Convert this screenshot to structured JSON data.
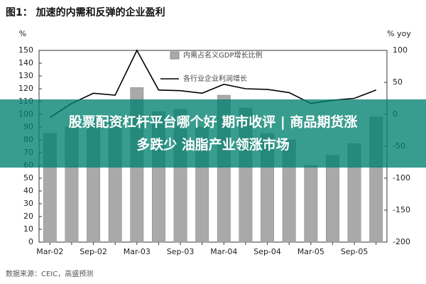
{
  "chart_data": {
    "type": "bar",
    "title": "图1： 加速的内需和反弹的企业盈利",
    "y_label": "%",
    "y2_label": "% yoy",
    "categories": [
      "Mar-02",
      null,
      "Sep-02",
      null,
      "Mar-03",
      null,
      "Sep-03",
      null,
      "Mar-04",
      null,
      "Sep-04",
      null,
      "Mar-05",
      null,
      "Sep-05",
      null
    ],
    "series": [
      {
        "name": "内需占名义GDP增长比例",
        "color": "#a9a9a9",
        "type": "bar",
        "values": [
          85,
          90,
          97,
          97,
          121,
          102,
          104,
          90,
          115,
          105,
          85,
          80,
          60,
          68,
          77,
          98
        ]
      },
      {
        "name": "各行业企业利润增长",
        "color": "#000000",
        "type": "line",
        "axis": "y2",
        "values": [
          -5,
          17,
          33,
          30,
          100,
          38,
          37,
          33,
          47,
          40,
          39,
          34,
          17,
          22,
          25,
          38
        ]
      }
    ],
    "ylim": [
      0,
      150
    ],
    "yticks": [
      0,
      10,
      20,
      30,
      40,
      50,
      60,
      70,
      80,
      90,
      100,
      110,
      120,
      130,
      140,
      150
    ],
    "y2lim": [
      -200,
      100
    ],
    "y2ticks": [
      -200,
      -150,
      -100,
      -50,
      0,
      50,
      100
    ],
    "grid": false,
    "source": "数据来源：CEIC，高盛预测"
  },
  "overlay": {
    "lines": [
      "股票配资杠杆平台哪个好 期市收评 | 商品期货涨",
      "多跌少 油脂产业领涨市场"
    ]
  }
}
